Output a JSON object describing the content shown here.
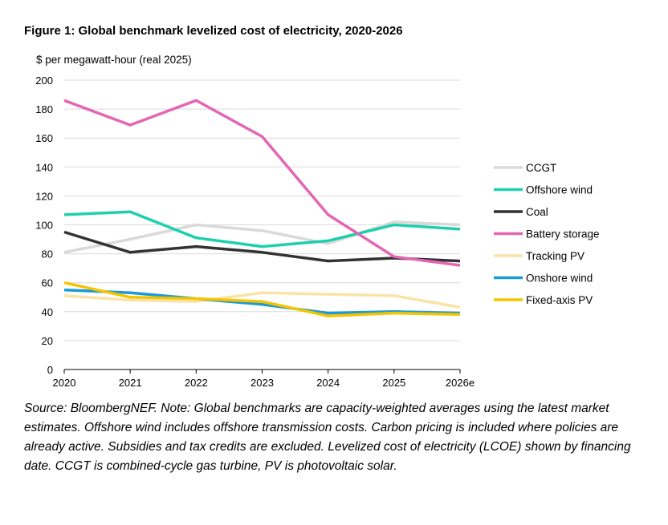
{
  "figure": {
    "title": "Figure 1: Global benchmark levelized cost of electricity, 2020-2026",
    "source_note": "Source: BloombergNEF. Note: Global benchmarks are capacity-weighted averages using the latest market estimates. Offshore wind includes offshore transmission costs. Carbon pricing is included where policies are already active. Subsidies and tax credits are excluded. Levelized cost of electricity (LCOE) shown by financing date. CCGT is combined-cycle gas turbine, PV is photovoltaic solar."
  },
  "chart_data": {
    "type": "line",
    "title": "Figure 1: Global benchmark levelized cost of electricity, 2020-2026",
    "ylabel": "$ per megawatt-hour (real 2025)",
    "xlabel": "",
    "categories": [
      "2020",
      "2021",
      "2022",
      "2023",
      "2024",
      "2025",
      "2026e"
    ],
    "ylim": [
      0,
      200
    ],
    "yticks": [
      0,
      20,
      40,
      60,
      80,
      100,
      120,
      140,
      160,
      180,
      200
    ],
    "grid": true,
    "legend_position": "right",
    "series": [
      {
        "name": "CCGT",
        "color": "#d9d9d9",
        "values": [
          81,
          90,
          100,
          96,
          87,
          102,
          100
        ]
      },
      {
        "name": "Offshore wind",
        "color": "#1ecfad",
        "values": [
          107,
          109,
          91,
          85,
          89,
          100,
          97
        ]
      },
      {
        "name": "Coal",
        "color": "#333333",
        "values": [
          95,
          81,
          85,
          81,
          75,
          77,
          75
        ]
      },
      {
        "name": "Battery storage",
        "color": "#e366b4",
        "values": [
          186,
          169,
          186,
          161,
          107,
          78,
          72
        ]
      },
      {
        "name": "Tracking PV",
        "color": "#fbe3a6",
        "values": [
          51,
          48,
          47,
          53,
          52,
          51,
          43
        ]
      },
      {
        "name": "Onshore wind",
        "color": "#1a9ad6",
        "values": [
          55,
          53,
          49,
          45,
          39,
          40,
          39
        ]
      },
      {
        "name": "Fixed-axis PV",
        "color": "#f5c400",
        "values": [
          60,
          50,
          49,
          47,
          37,
          39,
          38
        ]
      }
    ]
  }
}
